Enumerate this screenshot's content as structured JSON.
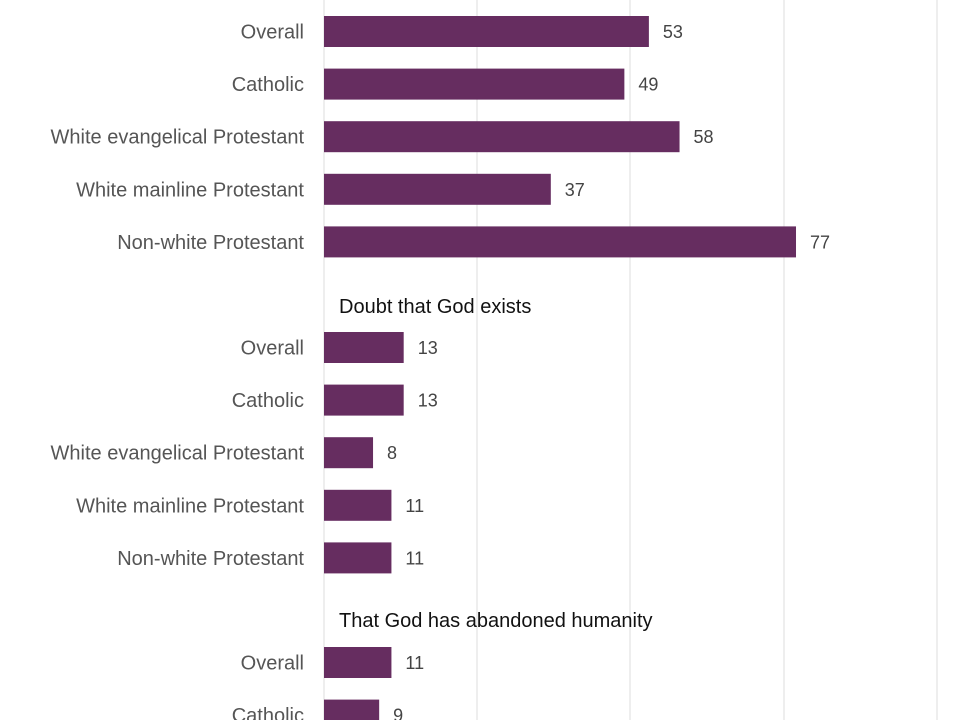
{
  "chart_data": {
    "type": "bar",
    "orientation": "horizontal",
    "grid": true,
    "bar_color": "#662d60",
    "groups": [
      {
        "title": "",
        "categories": [
          "Overall",
          "Catholic",
          "White evangelical Protestant",
          "White mainline Protestant",
          "Non-white Protestant"
        ],
        "values": [
          53,
          49,
          58,
          37,
          77
        ]
      },
      {
        "title": "Doubt that God exists",
        "categories": [
          "Overall",
          "Catholic",
          "White evangelical Protestant",
          "White mainline Protestant",
          "Non-white Protestant"
        ],
        "values": [
          13,
          13,
          8,
          11,
          11
        ]
      },
      {
        "title": "That God has abandoned humanity",
        "categories": [
          "Overall",
          "Catholic"
        ],
        "values": [
          11,
          9
        ]
      }
    ]
  }
}
